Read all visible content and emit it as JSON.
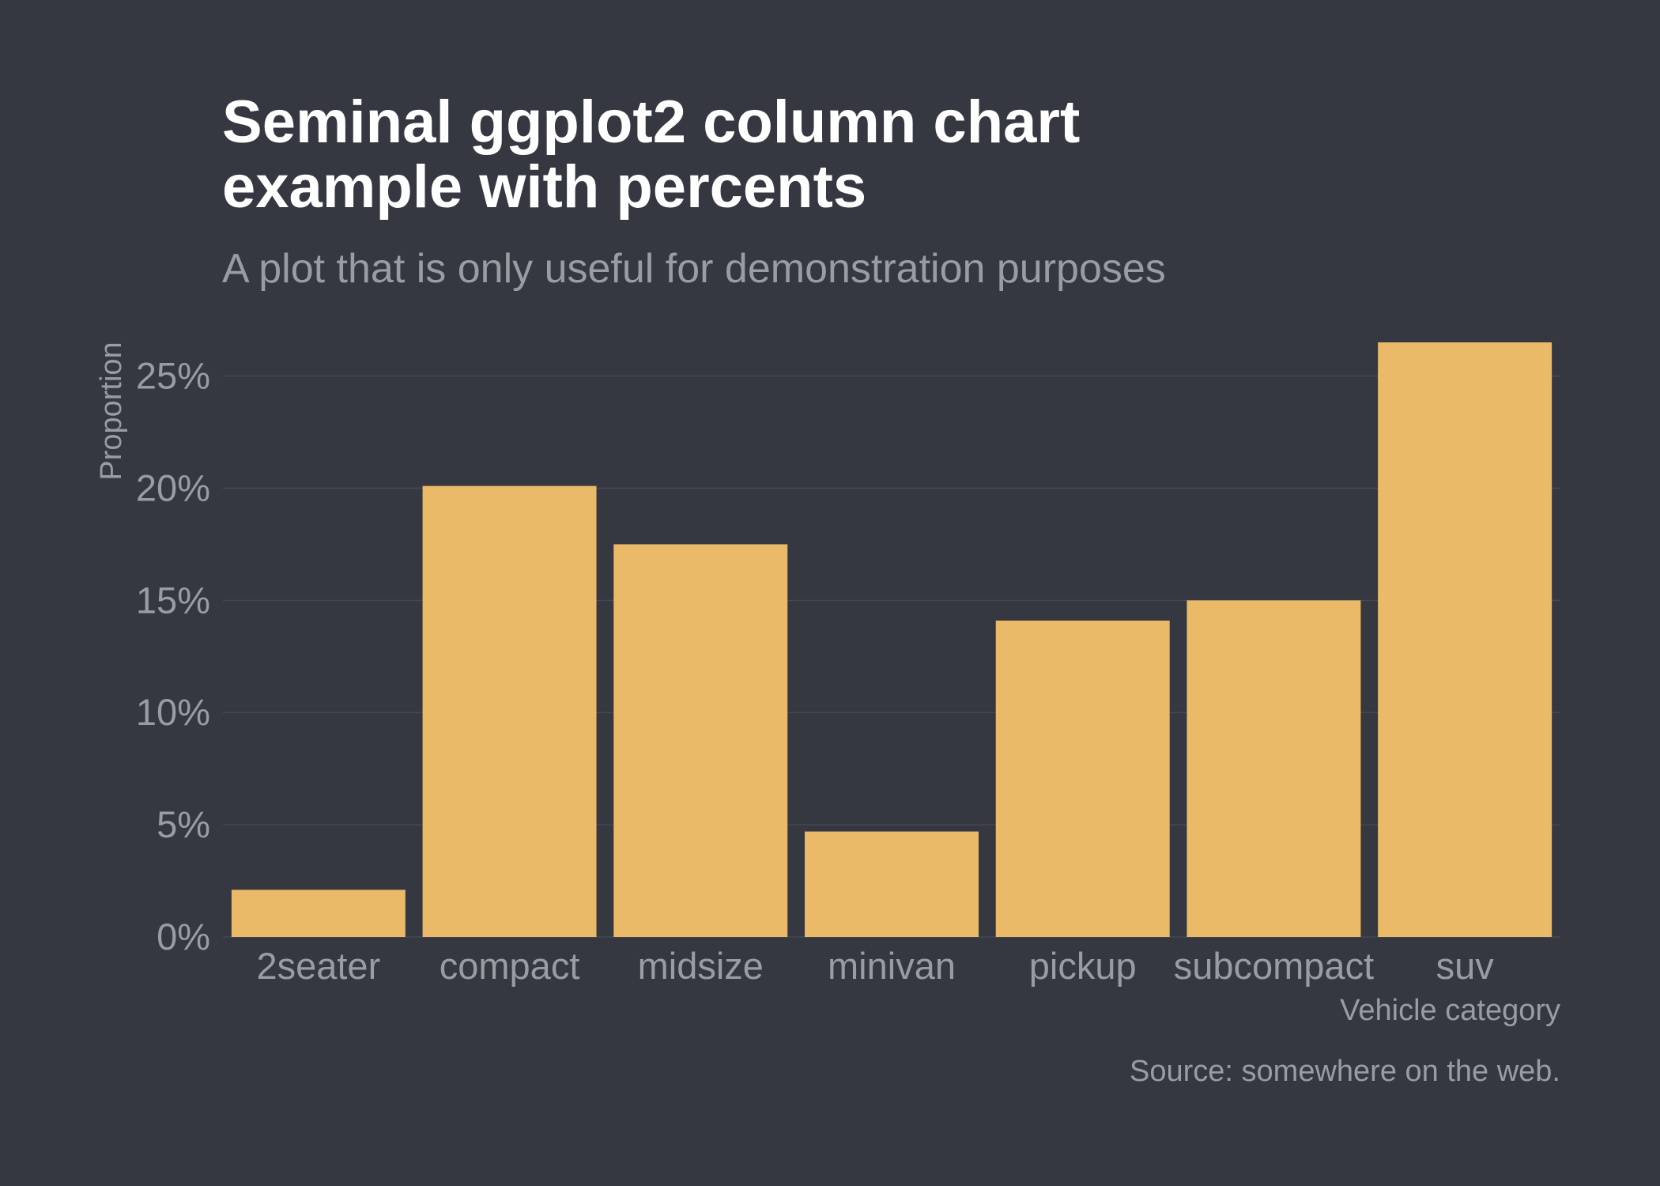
{
  "chart_data": {
    "type": "bar",
    "title_lines": [
      "Seminal ggplot2 column chart",
      "example with percents"
    ],
    "subtitle": "A plot that is only useful for demonstration purposes",
    "xlabel": "Vehicle category",
    "ylabel": "Proportion",
    "caption": "Source: somewhere on the web.",
    "categories": [
      "2seater",
      "compact",
      "midsize",
      "minivan",
      "pickup",
      "subcompact",
      "suv"
    ],
    "values": [
      2.1,
      20.1,
      17.5,
      4.7,
      14.1,
      15.0,
      26.5
    ],
    "value_unit": "%",
    "ylim": [
      0,
      26.5
    ],
    "yticks": [
      0,
      5,
      10,
      15,
      20,
      25
    ],
    "ytick_labels": [
      "0%",
      "5%",
      "10%",
      "15%",
      "20%",
      "25%"
    ],
    "grid": true,
    "colors": {
      "background": "#353840",
      "bar": "#EBBA69",
      "grid": "#454952",
      "title": "#FFFFFF",
      "text": "#9A9CA3"
    }
  }
}
